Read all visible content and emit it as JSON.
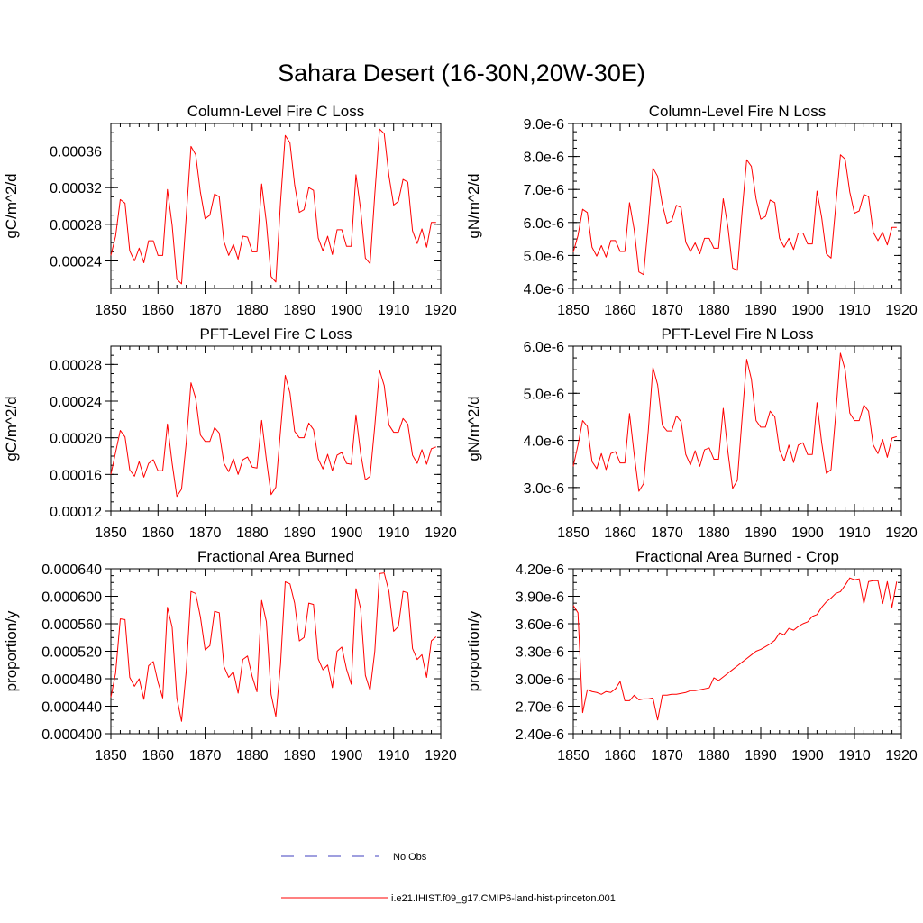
{
  "figure_title": "Sahara Desert (16-30N,20W-30E)",
  "colors": {
    "model_series": "#ff0000",
    "obs_series": "#3f3fbf",
    "axes": "#000000"
  },
  "legend": {
    "obs_label": "No Obs",
    "model_label": "i.e21.IHIST.f09_g17.CMIP6-land-hist-princeton.001"
  },
  "chart_data": [
    {
      "type": "line",
      "title": "Column-Level Fire C Loss",
      "xlabel": "",
      "ylabel": "gC/m^2/d",
      "xlim": [
        1850,
        1920
      ],
      "ylim": [
        0.00021,
        0.00039
      ],
      "x_ticks": [
        1850,
        1860,
        1870,
        1880,
        1890,
        1900,
        1910,
        1920
      ],
      "x_tick_labels": [
        "1850",
        "1860",
        "1870",
        "1880",
        "1890",
        "1900",
        "1910",
        "1920"
      ],
      "y_ticks": [
        0.00024,
        0.00028,
        0.00032,
        0.00036
      ],
      "y_tick_labels": [
        "0.00024",
        "0.00028",
        "0.00032",
        "0.00036"
      ],
      "series": [
        {
          "name": "i.e21.IHIST.f09_g17.CMIP6-land-hist-princeton.001",
          "x_start": 1850,
          "values": [
            0.000246,
            0.000267,
            0.000307,
            0.000303,
            0.000251,
            0.00024,
            0.000254,
            0.000238,
            0.000262,
            0.000262,
            0.000246,
            0.000246,
            0.000318,
            0.000279,
            0.00022,
            0.000215,
            0.000289,
            0.000365,
            0.000356,
            0.000315,
            0.000286,
            0.00029,
            0.000313,
            0.00031,
            0.000261,
            0.000246,
            0.000258,
            0.000242,
            0.000267,
            0.000266,
            0.00025,
            0.00025,
            0.000324,
            0.000282,
            0.000223,
            0.000217,
            0.000304,
            0.000377,
            0.000369,
            0.000323,
            0.000293,
            0.000296,
            0.00032,
            0.000317,
            0.000265,
            0.000251,
            0.000267,
            0.000247,
            0.000274,
            0.000274,
            0.000256,
            0.000256,
            0.000334,
            0.000296,
            0.000243,
            0.000237,
            0.000313,
            0.000384,
            0.000379,
            0.000333,
            0.000301,
            0.000305,
            0.000329,
            0.000326,
            0.000273,
            0.000259,
            0.000275,
            0.000255,
            0.000282,
            0.000282
          ]
        }
      ]
    },
    {
      "type": "line",
      "title": "Column-Level Fire N Loss",
      "xlabel": "",
      "ylabel": "gN/m^2/d",
      "xlim": [
        1850,
        1920
      ],
      "ylim": [
        4e-06,
        9e-06
      ],
      "x_ticks": [
        1850,
        1860,
        1870,
        1880,
        1890,
        1900,
        1910,
        1920
      ],
      "x_tick_labels": [
        "1850",
        "1860",
        "1870",
        "1880",
        "1890",
        "1900",
        "1910",
        "1920"
      ],
      "y_ticks": [
        4e-06,
        5e-06,
        6e-06,
        7e-06,
        8e-06,
        9e-06
      ],
      "y_tick_labels": [
        "4.0e-6",
        "5.0e-6",
        "6.0e-6",
        "7.0e-6",
        "8.0e-6",
        "9.0e-6"
      ],
      "series": [
        {
          "name": "i.e21.IHIST.f09_g17.CMIP6-land-hist-princeton.001",
          "x_start": 1850,
          "values": [
            5.1e-06,
            5.6e-06,
            6.4e-06,
            6.3e-06,
            5.25e-06,
            4.98e-06,
            5.3e-06,
            4.95e-06,
            5.45e-06,
            5.45e-06,
            5.12e-06,
            5.12e-06,
            6.6e-06,
            5.78e-06,
            4.5e-06,
            4.42e-06,
            5.95e-06,
            7.65e-06,
            7.4e-06,
            6.55e-06,
            5.98e-06,
            6.05e-06,
            6.52e-06,
            6.45e-06,
            5.4e-06,
            5.12e-06,
            5.38e-06,
            5.05e-06,
            5.52e-06,
            5.52e-06,
            5.22e-06,
            5.22e-06,
            6.72e-06,
            5.85e-06,
            4.62e-06,
            4.55e-06,
            6.3e-06,
            7.9e-06,
            7.7e-06,
            6.72e-06,
            6.1e-06,
            6.18e-06,
            6.68e-06,
            6.6e-06,
            5.52e-06,
            5.25e-06,
            5.52e-06,
            5.18e-06,
            5.68e-06,
            5.68e-06,
            5.35e-06,
            5.35e-06,
            6.95e-06,
            6.15e-06,
            5.05e-06,
            4.92e-06,
            6.5e-06,
            8.05e-06,
            7.92e-06,
            6.92e-06,
            6.28e-06,
            6.35e-06,
            6.85e-06,
            6.78e-06,
            5.7e-06,
            5.45e-06,
            5.7e-06,
            5.32e-06,
            5.85e-06,
            5.85e-06
          ]
        }
      ]
    },
    {
      "type": "line",
      "title": "PFT-Level Fire C Loss",
      "xlabel": "",
      "ylabel": "gC/m^2/d",
      "xlim": [
        1850,
        1920
      ],
      "ylim": [
        0.00012,
        0.0003
      ],
      "x_ticks": [
        1850,
        1860,
        1870,
        1880,
        1890,
        1900,
        1910,
        1920
      ],
      "x_tick_labels": [
        "1850",
        "1860",
        "1870",
        "1880",
        "1890",
        "1900",
        "1910",
        "1920"
      ],
      "y_ticks": [
        0.00012,
        0.00016,
        0.0002,
        0.00024,
        0.00028
      ],
      "y_tick_labels": [
        "0.00012",
        "0.00016",
        "0.00020",
        "0.00024",
        "0.00028"
      ],
      "series": [
        {
          "name": "i.e21.IHIST.f09_g17.CMIP6-land-hist-princeton.001",
          "x_start": 1850,
          "values": [
            0.00016,
            0.000184,
            0.000208,
            0.000201,
            0.000165,
            0.000158,
            0.000174,
            0.000157,
            0.000172,
            0.000176,
            0.000164,
            0.000164,
            0.000215,
            0.000172,
            0.000136,
            0.000144,
            0.000195,
            0.00026,
            0.000243,
            0.000203,
            0.000196,
            0.000196,
            0.000211,
            0.000205,
            0.000172,
            0.000163,
            0.000177,
            0.00016,
            0.000176,
            0.000179,
            0.000168,
            0.000167,
            0.000219,
            0.000176,
            0.000138,
            0.000146,
            0.000208,
            0.000268,
            0.000249,
            0.000207,
            0.0002,
            0.0002,
            0.000216,
            0.000209,
            0.000177,
            0.000166,
            0.000182,
            0.000164,
            0.000181,
            0.000184,
            0.000172,
            0.000171,
            0.000225,
            0.000183,
            0.000154,
            0.000158,
            0.000213,
            0.000274,
            0.000257,
            0.000214,
            0.000206,
            0.000206,
            0.000221,
            0.000215,
            0.000181,
            0.000172,
            0.000187,
            0.000171,
            0.000188,
            0.00019
          ]
        }
      ]
    },
    {
      "type": "line",
      "title": "PFT-Level Fire N Loss",
      "xlabel": "",
      "ylabel": "gN/m^2/d",
      "xlim": [
        1850,
        1920
      ],
      "ylim": [
        2.5e-06,
        6e-06
      ],
      "x_ticks": [
        1850,
        1860,
        1870,
        1880,
        1890,
        1900,
        1910,
        1920
      ],
      "x_tick_labels": [
        "1850",
        "1860",
        "1870",
        "1880",
        "1890",
        "1900",
        "1910",
        "1920"
      ],
      "y_ticks": [
        3e-06,
        4e-06,
        5e-06,
        6e-06
      ],
      "y_tick_labels": [
        "3.0e-6",
        "4.0e-6",
        "5.0e-6",
        "6.0e-6"
      ],
      "series": [
        {
          "name": "i.e21.IHIST.f09_g17.CMIP6-land-hist-princeton.001",
          "x_start": 1850,
          "values": [
            3.45e-06,
            3.9e-06,
            4.42e-06,
            4.3e-06,
            3.55e-06,
            3.4e-06,
            3.72e-06,
            3.38e-06,
            3.72e-06,
            3.76e-06,
            3.52e-06,
            3.52e-06,
            4.57e-06,
            3.7e-06,
            2.92e-06,
            3.08e-06,
            4.2e-06,
            5.55e-06,
            5.18e-06,
            4.32e-06,
            4.2e-06,
            4.2e-06,
            4.52e-06,
            4.4e-06,
            3.7e-06,
            3.48e-06,
            3.78e-06,
            3.45e-06,
            3.8e-06,
            3.84e-06,
            3.6e-06,
            3.6e-06,
            4.68e-06,
            3.75e-06,
            2.98e-06,
            3.15e-06,
            4.45e-06,
            5.72e-06,
            5.3e-06,
            4.42e-06,
            4.28e-06,
            4.28e-06,
            4.62e-06,
            4.5e-06,
            3.8e-06,
            3.56e-06,
            3.9e-06,
            3.53e-06,
            3.9e-06,
            3.95e-06,
            3.7e-06,
            3.7e-06,
            4.8e-06,
            3.95e-06,
            3.3e-06,
            3.38e-06,
            4.55e-06,
            5.85e-06,
            5.5e-06,
            4.58e-06,
            4.42e-06,
            4.42e-06,
            4.75e-06,
            4.62e-06,
            3.9e-06,
            3.72e-06,
            4.02e-06,
            3.64e-06,
            4.05e-06,
            4.08e-06
          ]
        }
      ]
    },
    {
      "type": "line",
      "title": "Fractional Area Burned",
      "xlabel": "",
      "ylabel": "proportion/y",
      "xlim": [
        1850,
        1920
      ],
      "ylim": [
        0.0004,
        0.00064
      ],
      "x_ticks": [
        1850,
        1860,
        1870,
        1880,
        1890,
        1900,
        1910,
        1920
      ],
      "x_tick_labels": [
        "1850",
        "1860",
        "1870",
        "1880",
        "1890",
        "1900",
        "1910",
        "1920"
      ],
      "y_ticks": [
        0.0004,
        0.00044,
        0.00048,
        0.00052,
        0.00056,
        0.0006,
        0.00064
      ],
      "y_tick_labels": [
        "0.000400",
        "0.000440",
        "0.000480",
        "0.000520",
        "0.000560",
        "0.000600",
        "0.000640"
      ],
      "series": [
        {
          "name": "i.e21.IHIST.f09_g17.CMIP6-land-hist-princeton.001",
          "x_start": 1850,
          "values": [
            0.000453,
            0.000488,
            0.000567,
            0.000566,
            0.000482,
            0.000469,
            0.00048,
            0.00045,
            0.000499,
            0.000505,
            0.000475,
            0.000452,
            0.000584,
            0.000555,
            0.000452,
            0.000418,
            0.000492,
            0.000607,
            0.000604,
            0.00057,
            0.000522,
            0.000528,
            0.000578,
            0.000576,
            0.000498,
            0.000482,
            0.00049,
            0.000459,
            0.000508,
            0.000513,
            0.000483,
            0.000461,
            0.000594,
            0.000563,
            0.000457,
            0.000425,
            0.000501,
            0.000621,
            0.000618,
            0.00059,
            0.000535,
            0.00054,
            0.00059,
            0.000588,
            0.000509,
            0.000493,
            0.0005,
            0.000467,
            0.00052,
            0.000526,
            0.000494,
            0.000472,
            0.000611,
            0.000582,
            0.000485,
            0.000463,
            0.00052,
            0.000633,
            0.000634,
            0.000607,
            0.000549,
            0.000556,
            0.000607,
            0.000605,
            0.000524,
            0.000508,
            0.000515,
            0.000482,
            0.000535,
            0.000541
          ]
        }
      ]
    },
    {
      "type": "line",
      "title": "Fractional Area Burned - Crop",
      "xlabel": "",
      "ylabel": "proportion/y",
      "xlim": [
        1850,
        1920
      ],
      "ylim": [
        2.4e-06,
        4.2e-06
      ],
      "x_ticks": [
        1850,
        1860,
        1870,
        1880,
        1890,
        1900,
        1910,
        1920
      ],
      "x_tick_labels": [
        "1850",
        "1860",
        "1870",
        "1880",
        "1890",
        "1900",
        "1910",
        "1920"
      ],
      "y_ticks": [
        2.4e-06,
        2.7e-06,
        3e-06,
        3.3e-06,
        3.6e-06,
        3.9e-06,
        4.2e-06
      ],
      "y_tick_labels": [
        "2.40e-6",
        "2.70e-6",
        "3.00e-6",
        "3.30e-6",
        "3.60e-6",
        "3.90e-6",
        "4.20e-6"
      ],
      "series": [
        {
          "name": "i.e21.IHIST.f09_g17.CMIP6-land-hist-princeton.001",
          "x_start": 1850,
          "values": [
            3.8e-06,
            3.72e-06,
            2.63e-06,
            2.88e-06,
            2.86e-06,
            2.85e-06,
            2.83e-06,
            2.86e-06,
            2.85e-06,
            2.89e-06,
            2.97e-06,
            2.76e-06,
            2.76e-06,
            2.82e-06,
            2.77e-06,
            2.78e-06,
            2.78e-06,
            2.79e-06,
            2.55e-06,
            2.82e-06,
            2.82e-06,
            2.83e-06,
            2.83e-06,
            2.84e-06,
            2.85e-06,
            2.87e-06,
            2.87e-06,
            2.88e-06,
            2.89e-06,
            2.9e-06,
            3.01e-06,
            2.98e-06,
            3.02e-06,
            3.06e-06,
            3.1e-06,
            3.14e-06,
            3.18e-06,
            3.22e-06,
            3.26e-06,
            3.3e-06,
            3.32e-06,
            3.35e-06,
            3.38e-06,
            3.42e-06,
            3.5e-06,
            3.48e-06,
            3.55e-06,
            3.53e-06,
            3.57e-06,
            3.6e-06,
            3.62e-06,
            3.68e-06,
            3.7e-06,
            3.78e-06,
            3.84e-06,
            3.88e-06,
            3.93e-06,
            3.95e-06,
            4.02e-06,
            4.1e-06,
            4.08e-06,
            4.09e-06,
            3.82e-06,
            4.06e-06,
            4.07e-06,
            4.07e-06,
            3.82e-06,
            4.06e-06,
            3.78e-06,
            4.06e-06
          ]
        }
      ]
    }
  ]
}
